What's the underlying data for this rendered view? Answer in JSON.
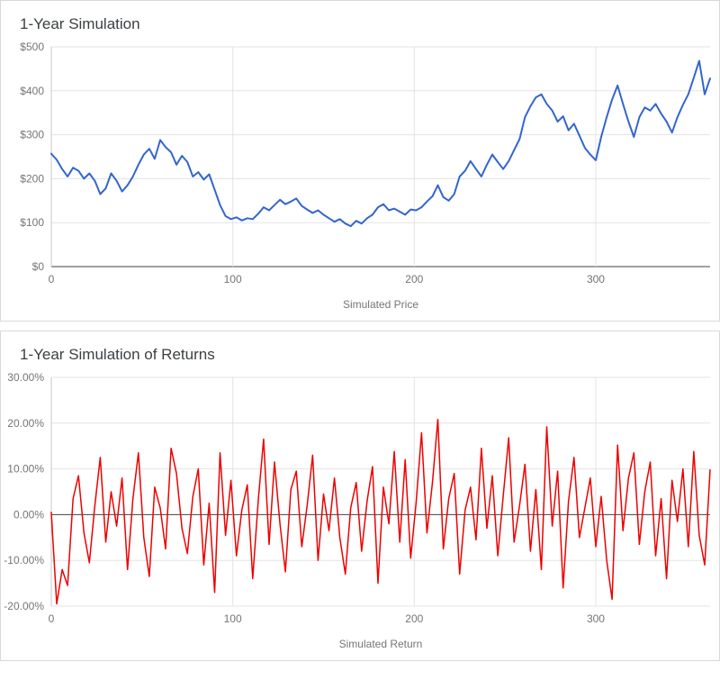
{
  "page": {
    "background": "#ffffff",
    "panel_border": "#d9d9d9"
  },
  "chart_data": [
    {
      "type": "line",
      "title": "1-Year Simulation",
      "xlabel": "Simulated Price",
      "legend": "none",
      "grid": true,
      "color": "#3366cc",
      "stroke_width": 2,
      "x_start": 0,
      "x_step": 3,
      "xlim": [
        0,
        363
      ],
      "ylim": [
        0,
        500
      ],
      "x_ticks": [
        0,
        100,
        200,
        300
      ],
      "y_ticks": [
        {
          "value": 0,
          "label": "$0"
        },
        {
          "value": 100,
          "label": "$100"
        },
        {
          "value": 200,
          "label": "$200"
        },
        {
          "value": 300,
          "label": "$300"
        },
        {
          "value": 400,
          "label": "$400"
        },
        {
          "value": 500,
          "label": "$500"
        }
      ],
      "baseline": 0,
      "values": [
        257,
        243,
        222,
        205,
        225,
        218,
        200,
        212,
        195,
        165,
        178,
        212,
        195,
        171,
        185,
        205,
        232,
        255,
        268,
        245,
        288,
        272,
        260,
        232,
        252,
        238,
        205,
        215,
        198,
        210,
        175,
        140,
        115,
        108,
        112,
        105,
        110,
        108,
        120,
        135,
        128,
        140,
        152,
        142,
        148,
        155,
        138,
        130,
        122,
        128,
        118,
        110,
        102,
        108,
        98,
        92,
        104,
        98,
        110,
        118,
        135,
        142,
        128,
        132,
        125,
        118,
        130,
        128,
        135,
        148,
        160,
        185,
        158,
        150,
        165,
        205,
        218,
        240,
        222,
        205,
        232,
        255,
        238,
        222,
        240,
        265,
        290,
        340,
        365,
        385,
        392,
        370,
        355,
        330,
        342,
        310,
        325,
        298,
        270,
        255,
        242,
        295,
        340,
        380,
        412,
        370,
        330,
        295,
        340,
        362,
        355,
        370,
        348,
        330,
        305,
        340,
        368,
        392,
        430,
        468,
        392,
        428
      ]
    },
    {
      "type": "line",
      "title": "1-Year Simulation of Returns",
      "xlabel": "Simulated Return",
      "legend": "none",
      "grid": true,
      "color": "#ee0000",
      "stroke_width": 1.5,
      "x_start": 0,
      "x_step": 3,
      "xlim": [
        0,
        363
      ],
      "ylim": [
        -20,
        30
      ],
      "x_ticks": [
        0,
        100,
        200,
        300
      ],
      "y_ticks": [
        {
          "value": -20,
          "label": "-20.00%"
        },
        {
          "value": -10,
          "label": "-10.00%"
        },
        {
          "value": 0,
          "label": "0.00%"
        },
        {
          "value": 10,
          "label": "10.00%"
        },
        {
          "value": 20,
          "label": "20.00%"
        },
        {
          "value": 30,
          "label": "30.00%"
        }
      ],
      "baseline": 0,
      "values": [
        0.5,
        -19.5,
        -12.0,
        -15.5,
        3.5,
        8.5,
        -4.0,
        -10.5,
        2.0,
        12.5,
        -6.0,
        5.0,
        -2.5,
        8.0,
        -12.0,
        3.5,
        13.5,
        -5.0,
        -13.5,
        6.0,
        1.5,
        -7.5,
        14.5,
        9.0,
        -3.0,
        -8.5,
        4.0,
        10.0,
        -11.0,
        2.5,
        -17.0,
        13.5,
        -4.5,
        7.5,
        -9.0,
        1.0,
        6.5,
        -14.0,
        3.0,
        16.5,
        -6.5,
        11.5,
        -2.0,
        -12.5,
        5.5,
        9.5,
        -7.0,
        2.0,
        13.0,
        -10.0,
        4.5,
        -3.5,
        8.0,
        -5.0,
        -13.0,
        1.5,
        7.0,
        -8.0,
        3.0,
        10.5,
        -15.0,
        6.0,
        -2.0,
        13.8,
        -6.0,
        12.0,
        -9.5,
        2.5,
        17.9,
        -4.0,
        7.0,
        20.8,
        -7.5,
        3.5,
        9.0,
        -13.0,
        1.0,
        6.0,
        -5.5,
        14.5,
        -3.0,
        8.5,
        -9.0,
        4.0,
        16.8,
        -6.0,
        2.0,
        11.0,
        -8.0,
        5.5,
        -12.0,
        19.2,
        -2.5,
        9.5,
        -16.0,
        3.0,
        12.5,
        -5.0,
        1.5,
        8.0,
        -7.0,
        4.0,
        -10.0,
        -18.5,
        15.2,
        -3.5,
        8.0,
        13.5,
        -6.5,
        5.0,
        11.5,
        -9.0,
        3.5,
        -14.0,
        7.5,
        -1.5,
        10.0,
        -7.0,
        13.8,
        -4.5,
        -11.0,
        9.8
      ]
    }
  ]
}
